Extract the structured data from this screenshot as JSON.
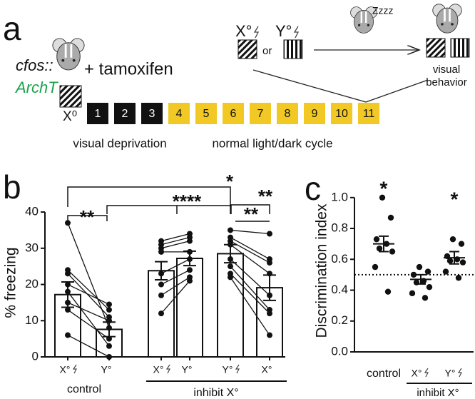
{
  "panel_a": {
    "label": "a",
    "genotype": "cfos::",
    "construct": "ArchT",
    "treatment": "+ tamoxifen",
    "training_stimulus": "X⁰",
    "days": [
      "1",
      "2",
      "3",
      "4",
      "5",
      "6",
      "7",
      "8",
      "9",
      "10",
      "11"
    ],
    "phases": [
      "visual deprivation",
      "normal light/dark cycle"
    ],
    "test_stimuli": [
      "X°",
      "Y°"
    ],
    "or": "or",
    "sleep": "Zzzz",
    "behavior": [
      "visual",
      "behavior"
    ]
  },
  "chart_data": [
    {
      "type": "bar",
      "panel": "b",
      "ylabel": "% freezing",
      "ylim": [
        0,
        41
      ],
      "yticks": [
        0,
        10,
        20,
        30,
        40
      ],
      "categories": [
        "X°",
        "Y°",
        "X°",
        "Y°",
        "Y°",
        "X°"
      ],
      "groups": [
        "control",
        "inhibit X°"
      ],
      "values": [
        17.2,
        7.6,
        23.8,
        27.2,
        28.5,
        19.1
      ],
      "errors": [
        3.5,
        2,
        2.5,
        2,
        2.5,
        3.5
      ],
      "points": [
        [
          37,
          24,
          23,
          20,
          18,
          15,
          13,
          6
        ],
        [
          8,
          13,
          11,
          14.5,
          3,
          10,
          5,
          0
        ],
        [
          32,
          31,
          30,
          29,
          23,
          20,
          17,
          12
        ],
        [
          34,
          33,
          32,
          29,
          27,
          24,
          22,
          21
        ],
        [
          35,
          33,
          32,
          31,
          27,
          25,
          23,
          22
        ],
        [
          34,
          27,
          26,
          23,
          17,
          13,
          12,
          6
        ]
      ],
      "significance": [
        "**",
        "*",
        "****",
        "**",
        "**"
      ],
      "color": "#ffffff"
    },
    {
      "type": "scatter",
      "panel": "c",
      "ylabel": "Discrimination index",
      "ylim": [
        0,
        1.05
      ],
      "yticks": [
        {
          "value": 0,
          "label": "0.0"
        },
        0.2,
        0.4,
        0.6,
        0.8,
        {
          "value": 1,
          "label": "1.0"
        }
      ],
      "categories": [
        "control",
        "X°",
        "Y°"
      ],
      "group": "inhibit X°",
      "points": [
        [
          1.0,
          0.87,
          0.73,
          0.7,
          0.67,
          0.65,
          0.55,
          0.39
        ],
        [
          0.55,
          0.52,
          0.5,
          0.46,
          0.45,
          0.42,
          0.38,
          0.35
        ],
        [
          0.73,
          0.7,
          0.62,
          0.6,
          0.59,
          0.58,
          0.52,
          0.48
        ]
      ],
      "means": [
        0.7,
        0.47,
        0.61
      ],
      "errors": [
        0.05,
        0.03,
        0.04
      ],
      "reference": 0.5,
      "significance": [
        "*",
        "*"
      ]
    }
  ]
}
